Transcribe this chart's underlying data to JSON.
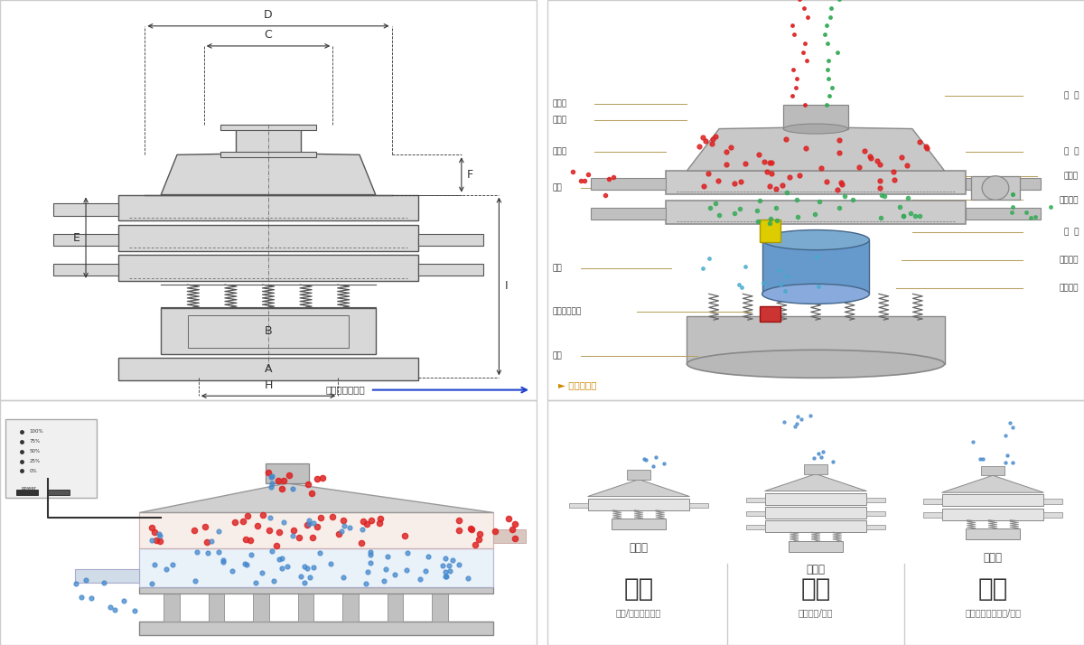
{
  "bg_color": "#ffffff",
  "panel_border": "#cccccc",
  "draw_color": "#555555",
  "dim_color": "#333333",
  "label_line_color": "#b8a060",
  "red_dot": "#dd2222",
  "blue_dot": "#4488cc",
  "green_dot": "#33aa55",
  "cyan_dot": "#44aacc",
  "screen_fill": "#d8d8d8",
  "screen_edge": "#999999",
  "left_labels": [
    "进料口",
    "防尘盖",
    "出料口",
    "束环",
    "弹簧",
    "运输固定螺栓",
    "机座"
  ],
  "right_labels": [
    "筛  网",
    "网  架",
    "加重块",
    "上部重锤",
    "筛  盘",
    "振动电机",
    "下部重锤"
  ],
  "nav_left": "外形尺寸示意图",
  "nav_right": "结构示意图",
  "label_single": "单层式",
  "label_three": "三层式",
  "label_double": "双层式",
  "bottom_labels_left": [
    "分级",
    "颟粒/粉末准确分级"
  ],
  "bottom_labels_mid": [
    "过滤",
    "去除异物/结块"
  ],
  "bottom_labels_right": [
    "除杂",
    "去除液体中的颟粒/异物"
  ],
  "control_labels": [
    "100%",
    "75%",
    "50%",
    "25%",
    "0%"
  ],
  "power_label": "power"
}
